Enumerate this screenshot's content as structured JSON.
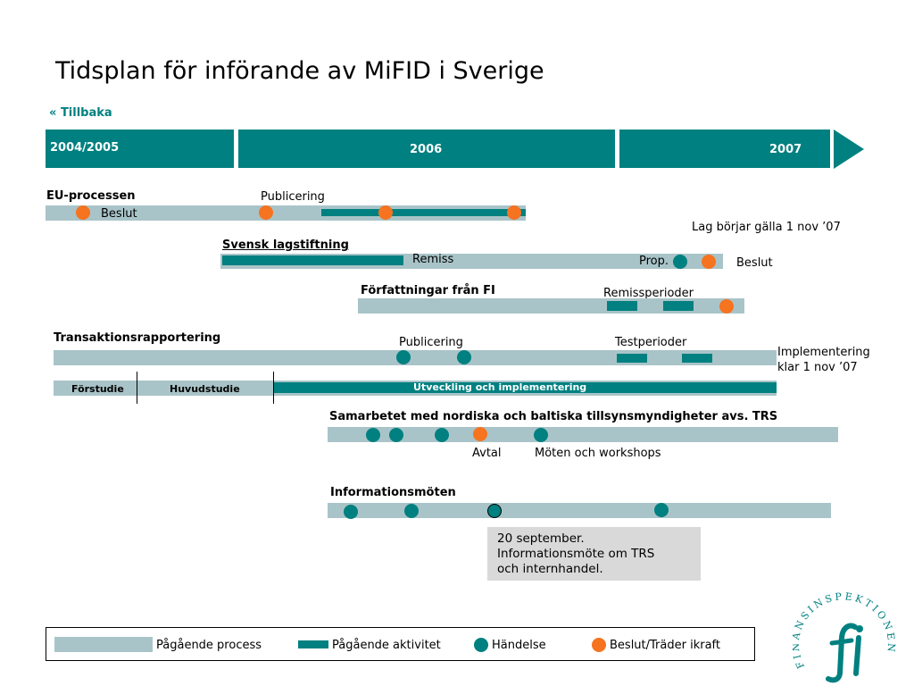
{
  "title": "Tidsplan för införande av MiFID i Sverige",
  "back": {
    "arrows": "«",
    "label": "Tillbaka"
  },
  "years": {
    "y1": "2004/2005",
    "y2": "2006",
    "y3": "2007"
  },
  "eu": {
    "heading": "EU-processen",
    "publicering": "Publicering",
    "beslut": "Beslut"
  },
  "svensk": {
    "heading": "Svensk lagstiftning",
    "remiss": "Remiss",
    "prop": "Prop.",
    "beslut": "Beslut",
    "lag": "Lag börjar gälla 1 nov ’07"
  },
  "fi": {
    "heading": "Författningar från FI",
    "remissperioder": "Remissperioder"
  },
  "trans": {
    "heading": "Transaktionsrapportering",
    "publicering": "Publicering",
    "testperioder": "Testperioder",
    "impl_line1": "Implementering",
    "impl_line2": "klar 1 nov ’07",
    "forstudie": "Förstudie",
    "huvudstudie": "Huvudstudie",
    "utveckling": "Utveckling och implementering"
  },
  "nordic": {
    "heading": "Samarbetet med nordiska och baltiska tillsynsmyndigheter avs. TRS",
    "avtal": "Avtal",
    "moten": "Möten och workshops"
  },
  "info": {
    "heading": "Informationsmöten",
    "note": "20 september.\nInformationsmöte om TRS\noch internhandel."
  },
  "legend": {
    "process": "Pågående process",
    "activity": "Pågående aktivitet",
    "event": "Händelse",
    "decision": "Beslut/Träder ikraft"
  },
  "logo_text": "FINANSINSPEKTIONEN",
  "colors": {
    "teal": "#008080",
    "grey_bar": "#a9c4c8",
    "orange": "#f6731f",
    "note_bg": "#d9d9d9"
  }
}
